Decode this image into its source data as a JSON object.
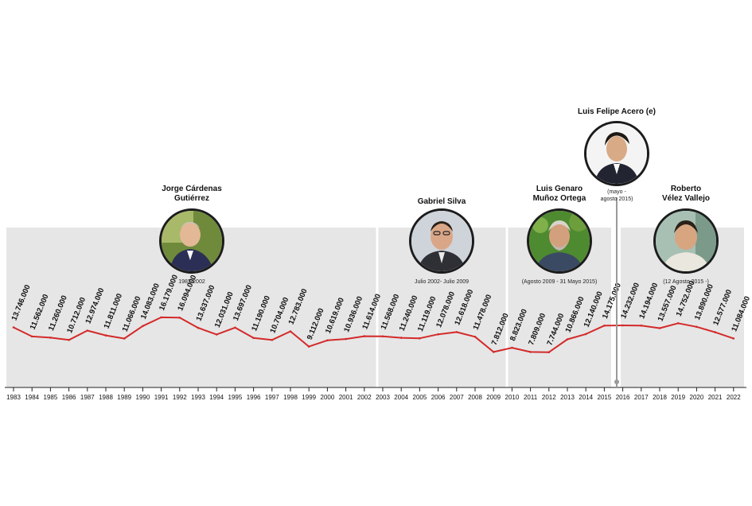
{
  "colors": {
    "line": "#d42a2a",
    "band": "#e6e6e6",
    "separator": "#ffffff",
    "label": "#111111"
  },
  "chart_data": {
    "type": "line",
    "title": "",
    "xlabel": "",
    "ylabel": "",
    "x": [
      1983,
      1984,
      1985,
      1986,
      1987,
      1988,
      1989,
      1990,
      1991,
      1992,
      1993,
      1994,
      1995,
      1996,
      1997,
      1998,
      1999,
      2000,
      2001,
      2002,
      2003,
      2004,
      2005,
      2006,
      2007,
      2008,
      2009,
      2010,
      2011,
      2012,
      2013,
      2014,
      2015,
      2016,
      2017,
      2018,
      2019,
      2020,
      2021,
      2022
    ],
    "x_tick_labels": [
      "1983",
      "1984",
      "1985",
      "1986",
      "1987",
      "1988",
      "1989",
      "1990",
      "1991",
      "1992",
      "1993",
      "1994",
      "1995",
      "1996",
      "1997",
      "1998",
      "1999",
      "2000",
      "2001",
      "2002",
      "2003",
      "2004",
      "2005",
      "2006",
      "2007",
      "2008",
      "2009",
      "2010",
      "2011",
      "2012",
      "2013",
      "2014",
      "2015",
      "2016",
      "2017",
      "2018",
      "2019",
      "2020",
      "2021",
      "2022"
    ],
    "values": [
      13746000,
      11562000,
      11260000,
      10712000,
      12974000,
      11811000,
      11066000,
      14083000,
      16179000,
      16094000,
      13637000,
      12031000,
      13697000,
      11190000,
      10704000,
      12783000,
      9112000,
      10619000,
      10936000,
      11614000,
      11568000,
      11240000,
      11119000,
      12078000,
      12618000,
      11478000,
      7812000,
      8823000,
      7809000,
      7744000,
      10866000,
      12140000,
      14175000,
      14232000,
      14194000,
      13557000,
      14752000,
      13890000,
      12577000,
      11084000
    ],
    "data_labels": [
      "13.746.000",
      "11.562.000",
      "11.260.000",
      "10.712.000",
      "12.974.000",
      "11.811.000",
      "11.066.000",
      "14.083.000",
      "16.179.000",
      "16.094.000",
      "13.637.000",
      "12.031.000",
      "13.697.000",
      "11.190.000",
      "10.704.000",
      "12.783.000",
      "9.112.000",
      "10.619.000",
      "10.936.000",
      "11.614.000",
      "11.568.000",
      "11.240.000",
      "11.119.000",
      "12.078.000",
      "12.618.000",
      "11.478.000",
      "7.812.000",
      "8.823.000",
      "7.809.000",
      "7.744.000",
      "10.866.000",
      "12.140.000",
      "14.175.000",
      "14.232.000",
      "14.194.000",
      "13.557.000",
      "14.752.000",
      "13.890.000",
      "12.577.000",
      "11.084.000"
    ],
    "ylim": [
      0,
      18000000
    ],
    "grid": false,
    "legend": "none",
    "annotations": [
      {
        "name": "Jorge Cárdenas\nGutiérrez",
        "period": "1983-2002"
      },
      {
        "name": "Gabriel Silva",
        "period": "Julio 2002- Julio 2009"
      },
      {
        "name": "Luis Genaro\nMuñoz Ortega",
        "period": "(Agosto 2009 - 31 Mayo 2015)"
      },
      {
        "name": "Luis Felipe Acero (e)",
        "period": "(mayo -\nagosto 2015)"
      },
      {
        "name": "Roberto\nVélez Vallejo",
        "period": "(12 Agosto 2015 -)"
      }
    ]
  }
}
